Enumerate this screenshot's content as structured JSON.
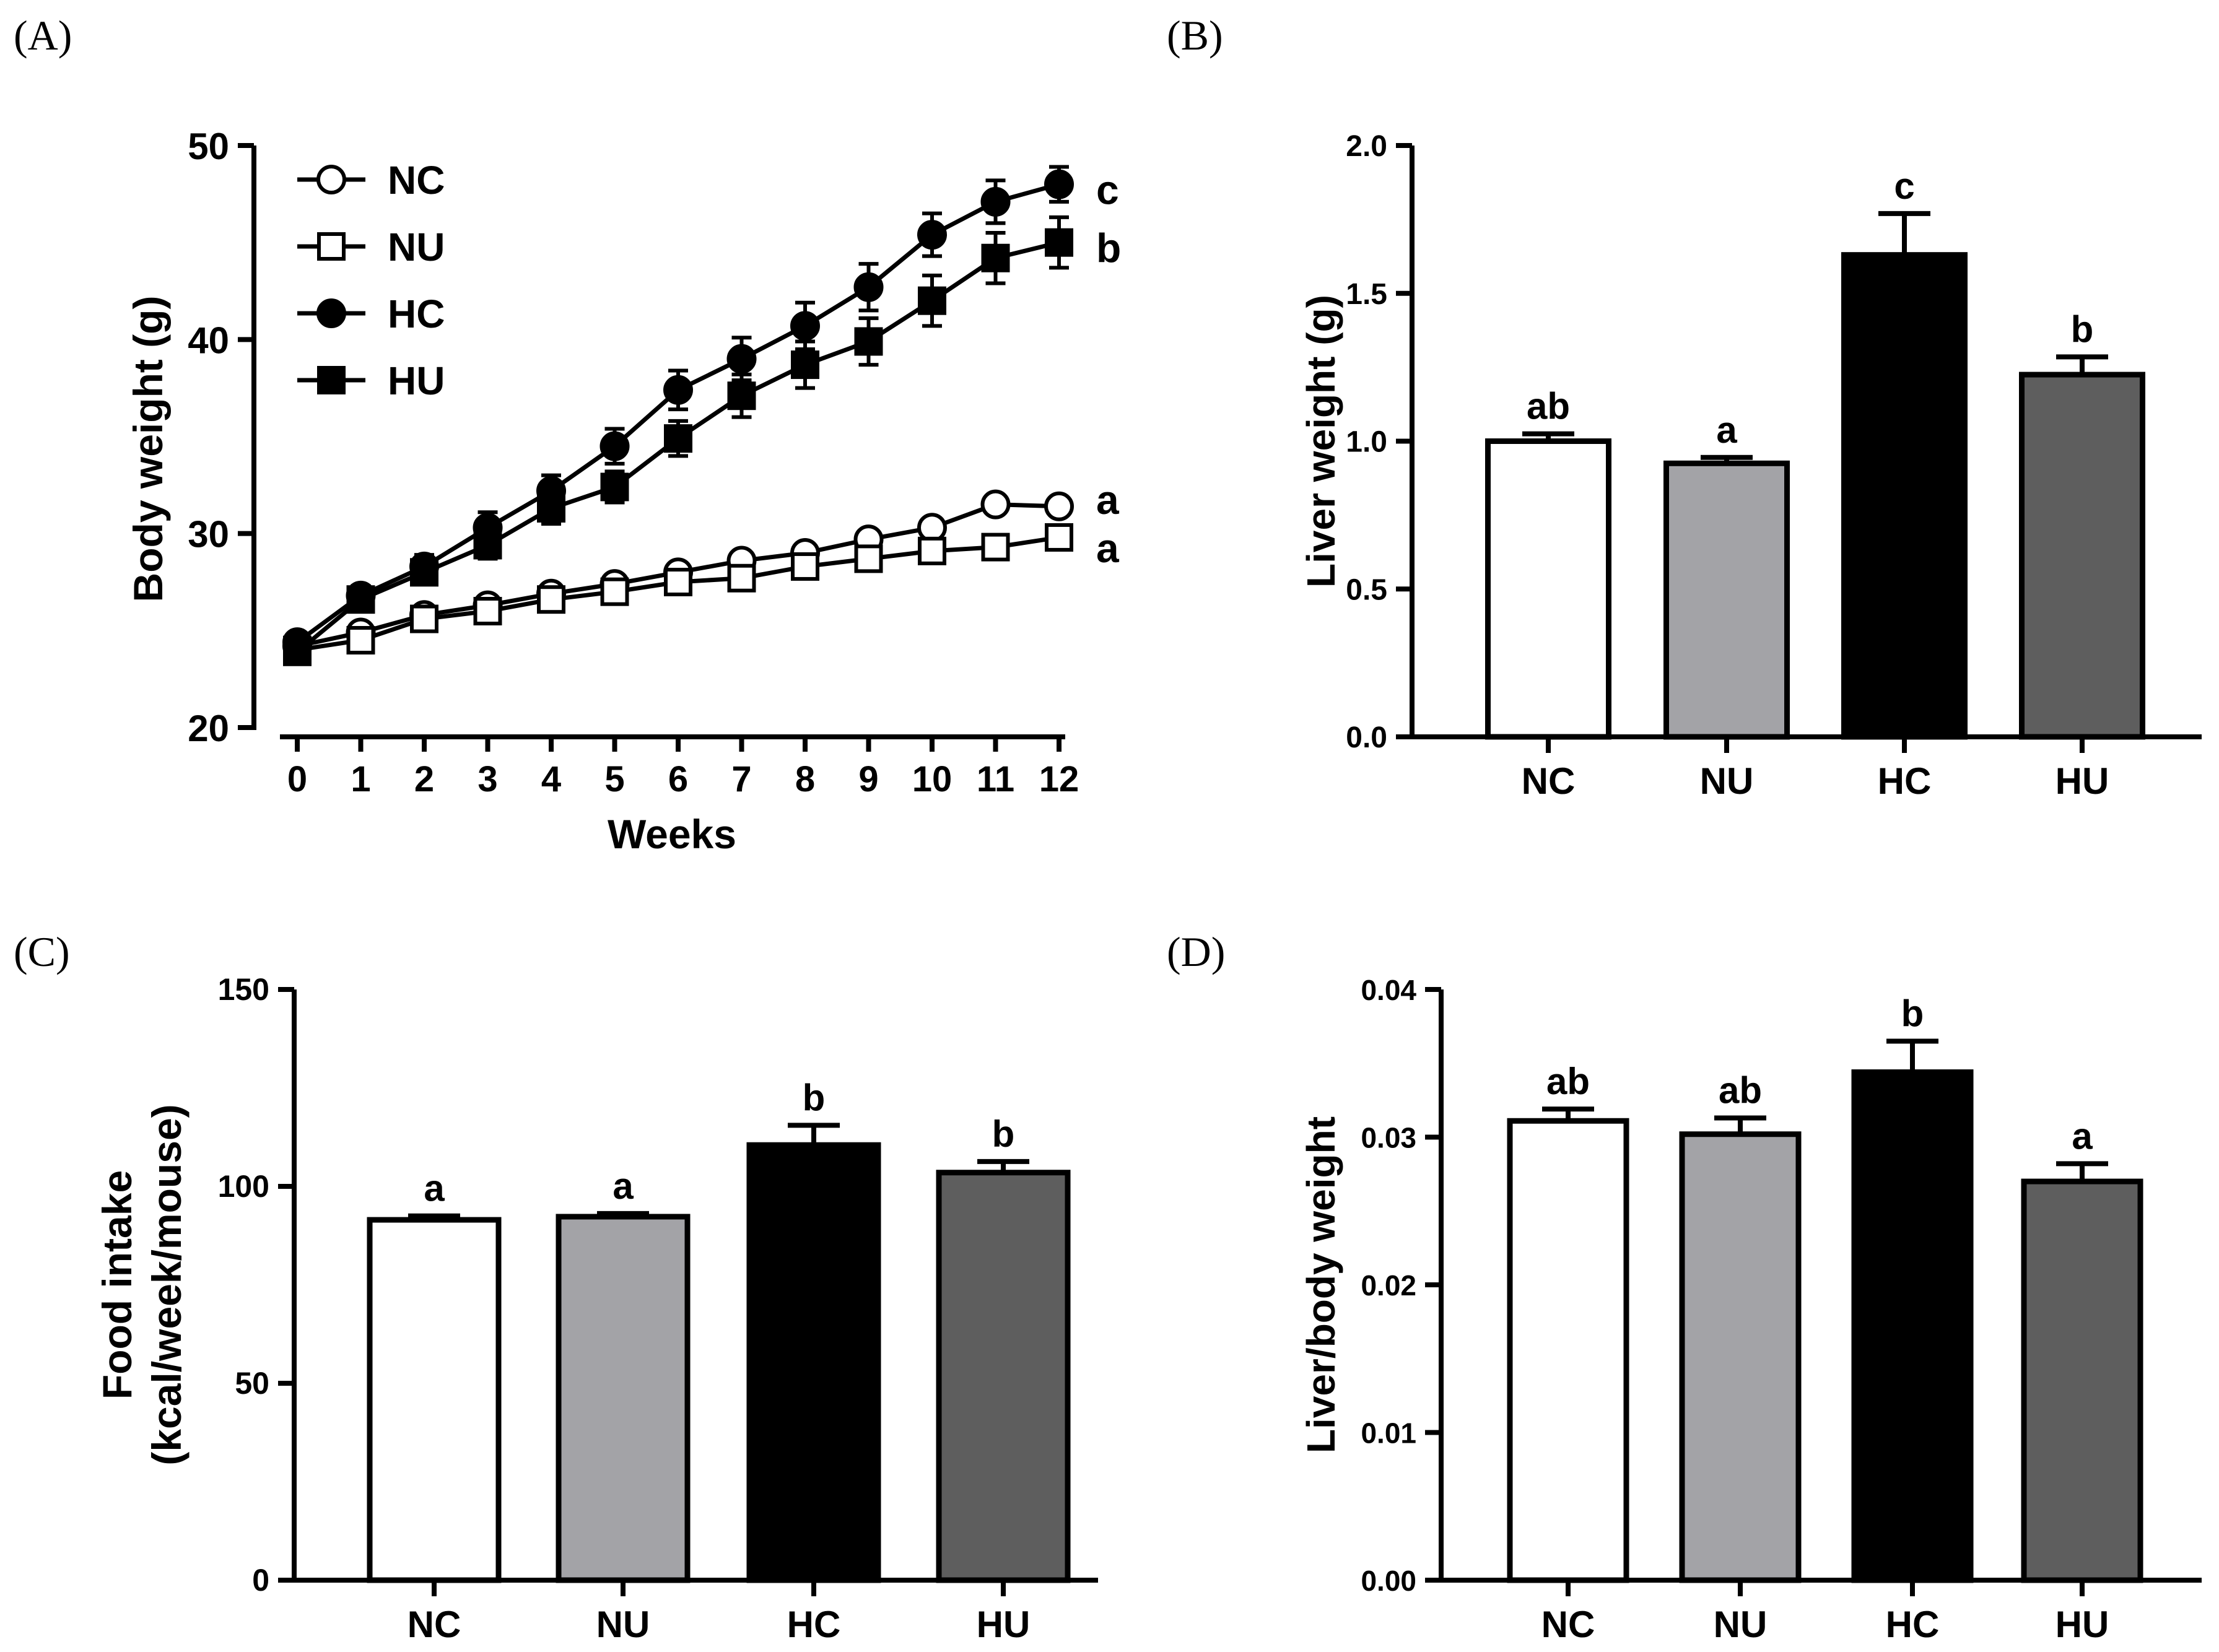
{
  "panels": {
    "a": "(A)",
    "b": "(B)",
    "c": "(C)",
    "d": "(D)"
  },
  "colors": {
    "NC": "#ffffff",
    "NU": "#a3a3a7",
    "HC": "#000000",
    "HU": "#5e5e5e",
    "stroke": "#000000"
  },
  "chart_data": [
    {
      "id": "A",
      "type": "line",
      "title": "",
      "xlabel": "Weeks",
      "ylabel": "Body weight (g)",
      "xlim": [
        0,
        12
      ],
      "ylim": [
        20,
        50
      ],
      "xticks": [
        "0",
        "1",
        "2",
        "3",
        "4",
        "5",
        "6",
        "7",
        "8",
        "9",
        "10",
        "11",
        "12"
      ],
      "yticks": [
        "20",
        "30",
        "40",
        "50"
      ],
      "legend_position": "top-left",
      "x": [
        0,
        1,
        2,
        3,
        4,
        5,
        6,
        7,
        8,
        9,
        10,
        11,
        12
      ],
      "series": [
        {
          "name": "NC",
          "marker": "circle-open",
          "values": [
            24.2,
            24.9,
            25.8,
            26.3,
            26.9,
            27.4,
            28.0,
            28.6,
            29.0,
            29.7,
            30.3,
            31.5,
            31.4
          ],
          "errors": [
            0.3,
            0.3,
            0.3,
            0.3,
            0.3,
            0.3,
            0.3,
            0.3,
            0.3,
            0.4,
            0.4,
            0.4,
            0.4
          ],
          "sig": "a"
        },
        {
          "name": "NU",
          "marker": "square-open",
          "values": [
            24.0,
            24.5,
            25.6,
            26.0,
            26.6,
            27.0,
            27.5,
            27.7,
            28.3,
            28.7,
            29.1,
            29.3,
            29.8
          ],
          "errors": [
            0.3,
            0.3,
            0.3,
            0.3,
            0.3,
            0.3,
            0.3,
            0.3,
            0.4,
            0.4,
            0.4,
            0.4,
            0.5
          ],
          "sig": "a"
        },
        {
          "name": "HC",
          "marker": "circle-filled",
          "values": [
            24.4,
            26.8,
            28.3,
            30.3,
            32.2,
            34.5,
            37.4,
            39.0,
            40.7,
            42.7,
            45.4,
            47.1,
            48.0
          ],
          "errors": [
            0.4,
            0.5,
            0.6,
            0.8,
            0.8,
            0.9,
            1.0,
            1.1,
            1.2,
            1.2,
            1.1,
            1.1,
            0.9
          ],
          "sig": "c"
        },
        {
          "name": "HU",
          "marker": "square-filled",
          "values": [
            23.9,
            26.6,
            28.0,
            29.4,
            31.3,
            32.4,
            34.9,
            37.1,
            38.7,
            39.9,
            42.0,
            44.2,
            45.0
          ],
          "errors": [
            0.4,
            0.5,
            0.6,
            0.7,
            0.8,
            0.8,
            0.9,
            1.1,
            1.2,
            1.2,
            1.3,
            1.3,
            1.3
          ],
          "sig": "b"
        }
      ]
    },
    {
      "id": "B",
      "type": "bar",
      "title": "",
      "xlabel": "",
      "ylabel": "Liver weight (g)",
      "ylim": [
        0,
        2.0
      ],
      "yticks": [
        "0.0",
        "0.5",
        "1.0",
        "1.5",
        "2.0"
      ],
      "categories": [
        "NC",
        "NU",
        "HC",
        "HU"
      ],
      "values": [
        1.0,
        0.925,
        1.63,
        1.225
      ],
      "errors": [
        0.025,
        0.02,
        0.14,
        0.06
      ],
      "labels": [
        "ab",
        "a",
        "c",
        "b"
      ]
    },
    {
      "id": "C",
      "type": "bar",
      "title": "",
      "xlabel": "",
      "ylabel": "Food intake",
      "ylabel2": "(kcal/week/mouse)",
      "ylim": [
        0,
        150
      ],
      "yticks": [
        "0",
        "50",
        "100",
        "150"
      ],
      "categories": [
        "NC",
        "NU",
        "HC",
        "HU"
      ],
      "values": [
        91.5,
        92.3,
        110.5,
        103.5
      ],
      "errors": [
        1.0,
        0.8,
        5.0,
        2.8
      ],
      "labels": [
        "a",
        "a",
        "b",
        "b"
      ]
    },
    {
      "id": "D",
      "type": "bar",
      "title": "",
      "xlabel": "",
      "ylabel": "Liver/body weight",
      "ylim": [
        0,
        0.04
      ],
      "yticks": [
        "0.00",
        "0.01",
        "0.02",
        "0.03",
        "0.04"
      ],
      "categories": [
        "NC",
        "NU",
        "HC",
        "HU"
      ],
      "values": [
        0.0311,
        0.0302,
        0.0344,
        0.027
      ],
      "errors": [
        0.0008,
        0.0011,
        0.0021,
        0.0012
      ],
      "labels": [
        "ab",
        "ab",
        "b",
        "a"
      ]
    }
  ]
}
